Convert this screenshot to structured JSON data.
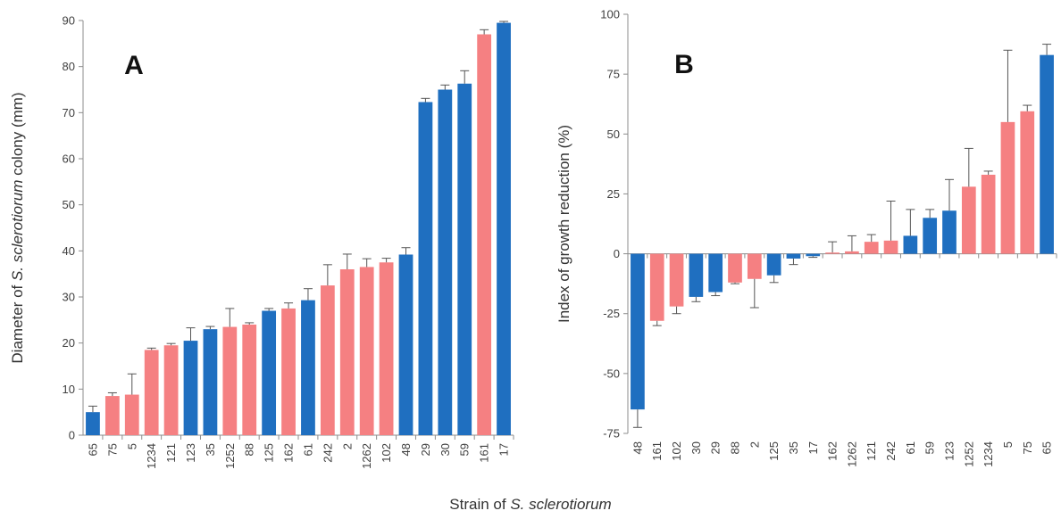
{
  "figure": {
    "xlabel_prefix": "Strain of ",
    "xlabel_italic": "S. sclerotiorum"
  },
  "colors": {
    "blue": "#1f6fc0",
    "pink": "#f58082",
    "axis": "#8c8c8c",
    "error": "#555555"
  },
  "chart_data": [
    {
      "type": "bar",
      "panel_label": "A",
      "ylabel_prefix": "Diameter of ",
      "ylabel_italic": "S. sclerotiorum",
      "ylabel_suffix": " colony (mm)",
      "ylim": [
        0,
        90
      ],
      "yticks": [
        0,
        10,
        20,
        30,
        40,
        50,
        60,
        70,
        80,
        90
      ],
      "grid": false,
      "categories": [
        "65",
        "75",
        "5",
        "1234",
        "121",
        "123",
        "35",
        "1252",
        "88",
        "125",
        "162",
        "61",
        "242",
        "2",
        "1262",
        "102",
        "48",
        "29",
        "30",
        "59",
        "161",
        "17"
      ],
      "values": [
        5,
        8.5,
        8.8,
        18.5,
        19.5,
        20.5,
        23,
        23.5,
        24,
        27,
        27.5,
        29.3,
        32.5,
        36,
        36.5,
        37.5,
        39.2,
        72.3,
        75,
        76.3,
        87,
        89.5
      ],
      "errors": [
        1.3,
        0.7,
        4.5,
        0.4,
        0.4,
        2.8,
        0.6,
        4,
        0.4,
        0.5,
        1.2,
        2.5,
        4.5,
        3.3,
        1.8,
        0.9,
        1.5,
        0.8,
        1,
        2.8,
        1,
        0.3
      ],
      "bar_colors": [
        "blue",
        "pink",
        "pink",
        "pink",
        "pink",
        "blue",
        "blue",
        "pink",
        "pink",
        "blue",
        "pink",
        "blue",
        "pink",
        "pink",
        "pink",
        "pink",
        "blue",
        "blue",
        "blue",
        "blue",
        "pink",
        "blue"
      ]
    },
    {
      "type": "bar",
      "panel_label": "B",
      "ylabel": "Index of growth reduction (%)",
      "ylim": [
        -75,
        100
      ],
      "yticks": [
        -75,
        -50,
        -25,
        0,
        25,
        50,
        75,
        100
      ],
      "grid": false,
      "categories": [
        "48",
        "161",
        "102",
        "30",
        "29",
        "88",
        "2",
        "125",
        "35",
        "17",
        "162",
        "1262",
        "121",
        "242",
        "61",
        "59",
        "123",
        "1252",
        "1234",
        "5",
        "75",
        "65"
      ],
      "values": [
        -65,
        -28,
        -22,
        -18,
        -16,
        -12,
        -10.5,
        -9,
        -2,
        -1,
        0.5,
        1,
        5,
        5.5,
        7.5,
        15,
        18,
        28,
        33,
        55,
        59.5,
        83
      ],
      "errors": [
        7.5,
        2,
        3,
        2,
        1.5,
        0.5,
        12,
        3,
        2.5,
        0.5,
        4.5,
        6.5,
        3,
        16.5,
        11,
        3.5,
        13,
        16,
        1.5,
        30,
        2.5,
        4.5
      ],
      "bar_colors": [
        "blue",
        "pink",
        "pink",
        "blue",
        "blue",
        "pink",
        "pink",
        "blue",
        "blue",
        "blue",
        "pink",
        "pink",
        "pink",
        "pink",
        "blue",
        "blue",
        "blue",
        "pink",
        "pink",
        "pink",
        "pink",
        "blue"
      ]
    }
  ]
}
